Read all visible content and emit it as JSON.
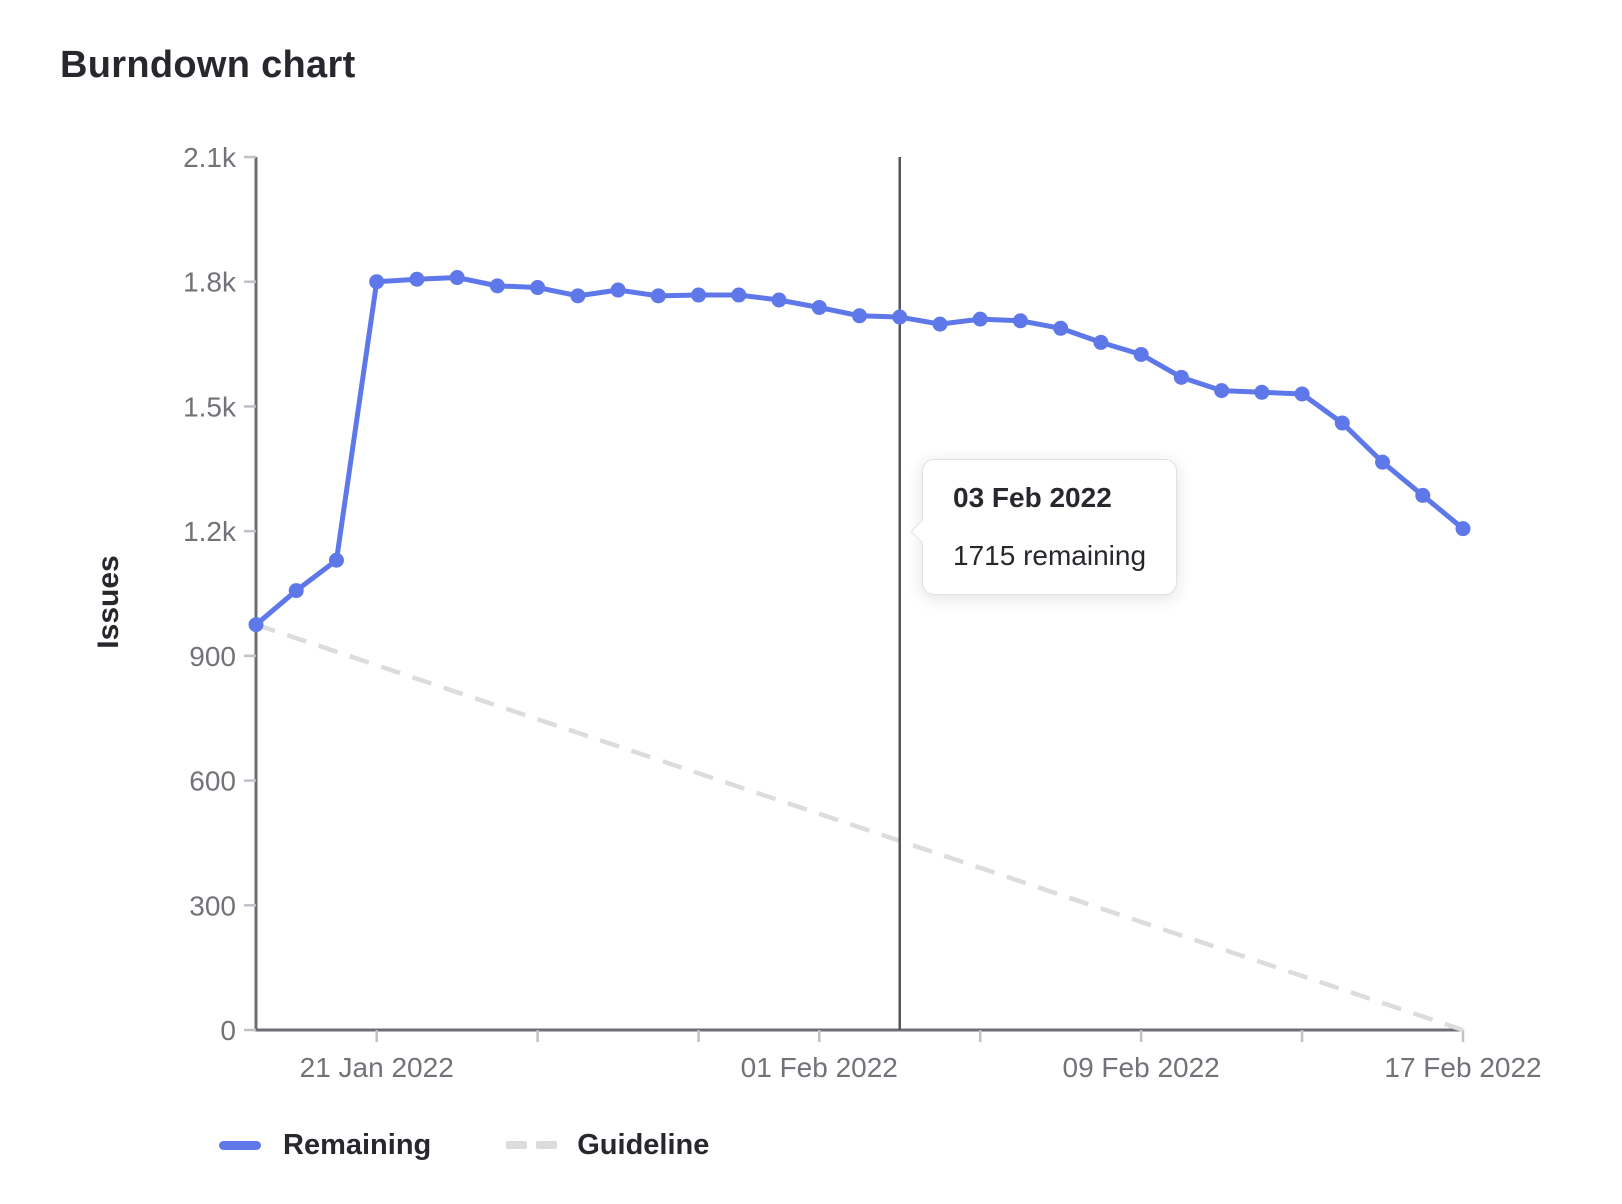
{
  "title": "Burndown chart",
  "tooltip": {
    "title": "03 Feb 2022",
    "body": "1715 remaining"
  },
  "legend": [
    {
      "label": "Remaining"
    },
    {
      "label": "Guideline"
    }
  ],
  "colors": {
    "remaining": "#5e78ea",
    "guideline": "#dcdcdc",
    "hover_line": "#54565b",
    "axis_line": "#6d6d75",
    "tick": "#c0c0c6",
    "axis_text": "#737278",
    "text": "#28272d"
  },
  "chart_data": {
    "type": "line",
    "title": "Burndown chart",
    "xlabel": "",
    "ylabel": "Issues",
    "ylim": [
      0,
      2100
    ],
    "grid": false,
    "legend_position": "bottom",
    "x": [
      "18 Jan 2022",
      "19 Jan 2022",
      "20 Jan 2022",
      "21 Jan 2022",
      "22 Jan 2022",
      "23 Jan 2022",
      "24 Jan 2022",
      "25 Jan 2022",
      "26 Jan 2022",
      "27 Jan 2022",
      "28 Jan 2022",
      "29 Jan 2022",
      "30 Jan 2022",
      "31 Jan 2022",
      "01 Feb 2022",
      "02 Feb 2022",
      "03 Feb 2022",
      "04 Feb 2022",
      "05 Feb 2022",
      "06 Feb 2022",
      "07 Feb 2022",
      "08 Feb 2022",
      "09 Feb 2022",
      "10 Feb 2022",
      "11 Feb 2022",
      "12 Feb 2022",
      "13 Feb 2022",
      "14 Feb 2022",
      "15 Feb 2022",
      "16 Feb 2022",
      "17 Feb 2022"
    ],
    "series": [
      {
        "name": "Remaining",
        "style": "solid",
        "color": "#5e78ea",
        "values": [
          975,
          1057,
          1130,
          1800,
          1806,
          1810,
          1790,
          1786,
          1766,
          1780,
          1766,
          1768,
          1768,
          1756,
          1738,
          1718,
          1715,
          1698,
          1710,
          1706,
          1688,
          1654,
          1625,
          1570,
          1538,
          1534,
          1530,
          1460,
          1366,
          1286,
          1206
        ]
      },
      {
        "name": "Guideline",
        "style": "dashed",
        "color": "#dcdcdc",
        "points": [
          [
            0,
            975
          ],
          [
            30,
            0
          ]
        ]
      }
    ],
    "y_ticks": [
      {
        "label": "2.1k",
        "value": 2100
      },
      {
        "label": "1.8k",
        "value": 1800
      },
      {
        "label": "1.5k",
        "value": 1500
      },
      {
        "label": "1.2k",
        "value": 1200
      },
      {
        "label": "900",
        "value": 900
      },
      {
        "label": "600",
        "value": 600
      },
      {
        "label": "300",
        "value": 300
      },
      {
        "label": "0",
        "value": 0
      }
    ],
    "x_tick_indices": [
      3,
      7,
      11,
      14,
      18,
      22,
      26,
      30
    ],
    "x_tick_labels": {
      "3": "21 Jan 2022",
      "14": "01 Feb 2022",
      "22": "09 Feb 2022",
      "30": "17 Feb 2022"
    },
    "hover_index": 16
  }
}
